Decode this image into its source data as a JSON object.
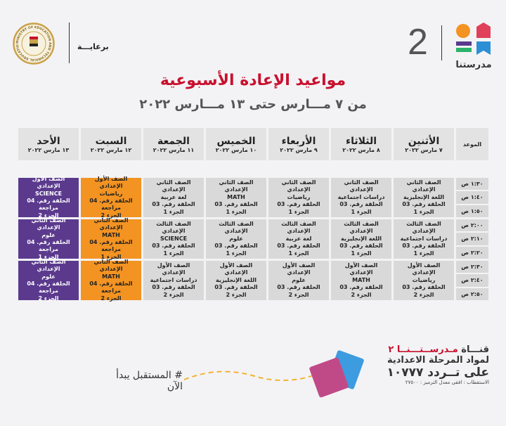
{
  "header": {
    "sponsor_label": "برعايـــة",
    "logo_number": "2",
    "brand_name": "مدرستنا",
    "ministry_logo_text": "MINISTRY OF EDUCATION AND TECHNICAL EDUCATION"
  },
  "title": "مواعيد الإعادة الأسبوعية",
  "subtitle": "من ٧ مـــارس حتى ١٣ مـــارس ٢٠٢٢",
  "colors": {
    "title": "#c8102e",
    "orange": "#f39322",
    "purple": "#5b3a8e",
    "gray": "#d9d9d9"
  },
  "table": {
    "time_header": "الموعد",
    "days": [
      {
        "name": "الأثنين",
        "date": "٧ مارس ٢٠٢٢"
      },
      {
        "name": "الثلاثاء",
        "date": "٨ مارس ٢٠٢٢"
      },
      {
        "name": "الأربعاء",
        "date": "٩ مارس ٢٠٢٢"
      },
      {
        "name": "الخميس",
        "date": "١٠ مارس ٢٠٢٢"
      },
      {
        "name": "الجمعة",
        "date": "١١ مارس ٢٠٢٢"
      },
      {
        "name": "السبت",
        "date": "١٢ مارس ٢٠٢٢"
      },
      {
        "name": "الأحد",
        "date": "١٣ مارس ٢٠٢٢"
      }
    ],
    "blocks": [
      {
        "times": [
          "١:٣٠ ص",
          "١:٤٠ ص",
          "١:٥٠ ص"
        ],
        "cells": [
          {
            "grade": "الصف الثاني الإعدادي",
            "subject": "اللغة الإنجليزية",
            "episode": "الحلقة رقم. 03",
            "part": "الجزء 1",
            "color": "gray"
          },
          {
            "grade": "الصف الثاني الإعدادي",
            "subject": "دراسات اجتماعية",
            "episode": "الحلقة رقم. 03",
            "part": "الجزء 1",
            "color": "gray"
          },
          {
            "grade": "الصف الثاني الإعدادي",
            "subject": "رياضيات",
            "episode": "الحلقة رقم. 03",
            "part": "الجزء 1",
            "color": "gray"
          },
          {
            "grade": "الصف الثاني الإعدادي",
            "subject": "MATH",
            "episode": "الحلقة رقم. 03",
            "part": "الجزء 1",
            "color": "gray"
          },
          {
            "grade": "الصف الثاني الإعدادي",
            "subject": "لغة عربية",
            "episode": "الحلقة رقم. 03",
            "part": "الجزء 1",
            "color": "gray"
          },
          {
            "grade": "الصف الأول الإعدادي",
            "subject": "رياضيات",
            "episode": "الحلقة رقم. 04 مراجعة",
            "part": "الجزء 2",
            "color": "orange"
          },
          {
            "grade": "الصف الأول الإعدادي",
            "subject": "SCIENCE",
            "episode": "الحلقة رقم. 04 مراجعة",
            "part": "الجزء 2",
            "color": "purple"
          }
        ]
      },
      {
        "times": [
          "٢:٠٠ ص",
          "٢:١٠ ص",
          "٢:٢٠ ص"
        ],
        "cells": [
          {
            "grade": "الصف الثالث الإعدادي",
            "subject": "دراسات اجتماعية",
            "episode": "الحلقة رقم. 03",
            "part": "الجزء 1",
            "color": "gray"
          },
          {
            "grade": "الصف الثالث الإعدادي",
            "subject": "اللغة الإنجليزية",
            "episode": "الحلقة رقم. 03",
            "part": "الجزء 1",
            "color": "gray"
          },
          {
            "grade": "الصف الثالث الإعدادي",
            "subject": "لغة عربية",
            "episode": "الحلقة رقم. 03",
            "part": "الجزء 1",
            "color": "gray"
          },
          {
            "grade": "الصف الثالث الإعدادي",
            "subject": "علوم",
            "episode": "الحلقة رقم. 03",
            "part": "الجزء 1",
            "color": "gray"
          },
          {
            "grade": "الصف الثالث الإعدادي",
            "subject": "SCIENCE",
            "episode": "الحلقة رقم. 03",
            "part": "الجزء 1",
            "color": "gray"
          },
          {
            "grade": "الصف الثاني الإعدادي",
            "subject": "MATH",
            "episode": "الحلقة رقم. 04 مراجعة",
            "part": "الجزء 1",
            "color": "orange"
          },
          {
            "grade": "الصف الثاني الإعدادي",
            "subject": "علوم",
            "episode": "الحلقة رقم. 04 مراجعة",
            "part": "الجزء 1",
            "color": "purple"
          }
        ]
      },
      {
        "times": [
          "٢:٣٠ ص",
          "٢:٤٠ ص",
          "٢:٥٠ ص"
        ],
        "cells": [
          {
            "grade": "الصف الأول الإعدادي",
            "subject": "رياضيات",
            "episode": "الحلقة رقم. 03",
            "part": "الجزء 2",
            "color": "gray"
          },
          {
            "grade": "الصف الأول الإعدادي",
            "subject": "MATH",
            "episode": "الحلقة رقم. 03",
            "part": "الجزء 2",
            "color": "gray"
          },
          {
            "grade": "الصف الأول الإعدادي",
            "subject": "علوم",
            "episode": "الحلقة رقم. 03",
            "part": "الجزء 2",
            "color": "gray"
          },
          {
            "grade": "الصف الأول الإعدادي",
            "subject": "اللغة الإنجليزية",
            "episode": "الحلقة رقم. 03",
            "part": "الجزء 2",
            "color": "gray"
          },
          {
            "grade": "الصف الأول الإعدادي",
            "subject": "دراسات اجتماعية",
            "episode": "الحلقة رقم. 03",
            "part": "الجزء 2",
            "color": "gray"
          },
          {
            "grade": "الصف الثاني الإعدادي",
            "subject": "MATH",
            "episode": "الحلقة رقم. 04 مراجعة",
            "part": "الجزء 2",
            "color": "orange"
          },
          {
            "grade": "الصف الثاني الإعدادي",
            "subject": "علوم",
            "episode": "الحلقة رقم. 04 مراجعة",
            "part": "الجزء 2",
            "color": "purple"
          }
        ]
      }
    ]
  },
  "footer": {
    "hashtag": "# المستقبل يبدأ الآن",
    "channel_prefix": "قنـــاة",
    "channel_name": "مـدرســتـــنــا ٢",
    "line2": "لمواد المرحلة الاعدادية",
    "line3": "على تــردد ١٠٧٧٧",
    "line4": "الاستقطاب : افقى معدل الترميز : ٢٧٥٠٠"
  }
}
